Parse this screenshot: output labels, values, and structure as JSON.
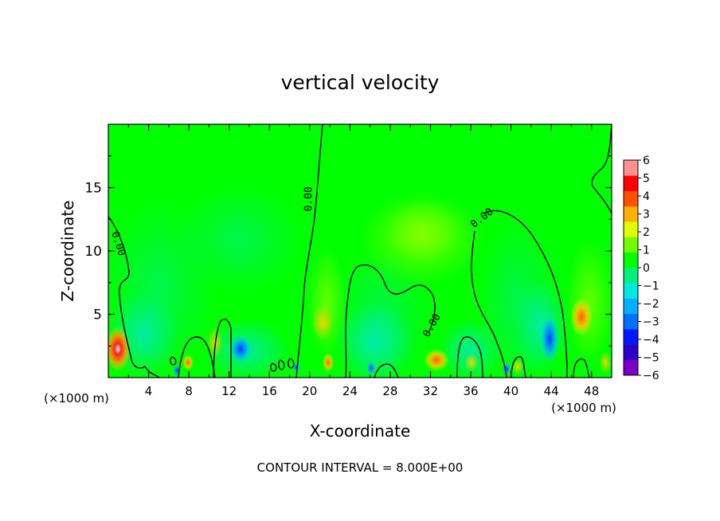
{
  "chart_data": {
    "type": "heatmap",
    "title": "vertical velocity",
    "xlabel": "X-coordinate",
    "ylabel": "Z-coordinate",
    "x_unit_left": "(×1000 m)",
    "x_unit_right": "(×1000 m)",
    "xlim": [
      0,
      50
    ],
    "ylim": [
      0,
      20
    ],
    "x_ticks": [
      4,
      8,
      12,
      16,
      20,
      24,
      28,
      32,
      36,
      40,
      44,
      48
    ],
    "y_ticks": [
      5,
      10,
      15
    ],
    "colorbar": {
      "min": -6,
      "max": 6,
      "ticks": [
        6,
        5,
        4,
        3,
        2,
        1,
        0,
        -1,
        -2,
        -3,
        -4,
        -5,
        -6
      ],
      "tick_labels": [
        "6",
        "5",
        "4",
        "3",
        "2",
        "1",
        "0",
        "−1",
        "−2",
        "−3",
        "−4",
        "−5",
        "−6"
      ],
      "colors": [
        "#7a00c8",
        "#2c00c8",
        "#0018ff",
        "#0070ff",
        "#00b0ff",
        "#00e8e0",
        "#00f080",
        "#00ff00",
        "#70ff00",
        "#e0ff00",
        "#ffb000",
        "#ff5000",
        "#ff0000",
        "#ff9090"
      ]
    },
    "contour_levels": [
      0
    ],
    "contour_labels": [
      {
        "text": "0.00",
        "x": 0.7,
        "z": 10.5
      },
      {
        "text": "0.00",
        "x": 20.2,
        "z": 14.1
      },
      {
        "text": "0.00",
        "x": 32.4,
        "z": 4.0
      },
      {
        "text": "0.00",
        "x": 37.3,
        "z": 12.4
      }
    ],
    "footer": "CONTOUR INTERVAL = 8.000E+00"
  }
}
